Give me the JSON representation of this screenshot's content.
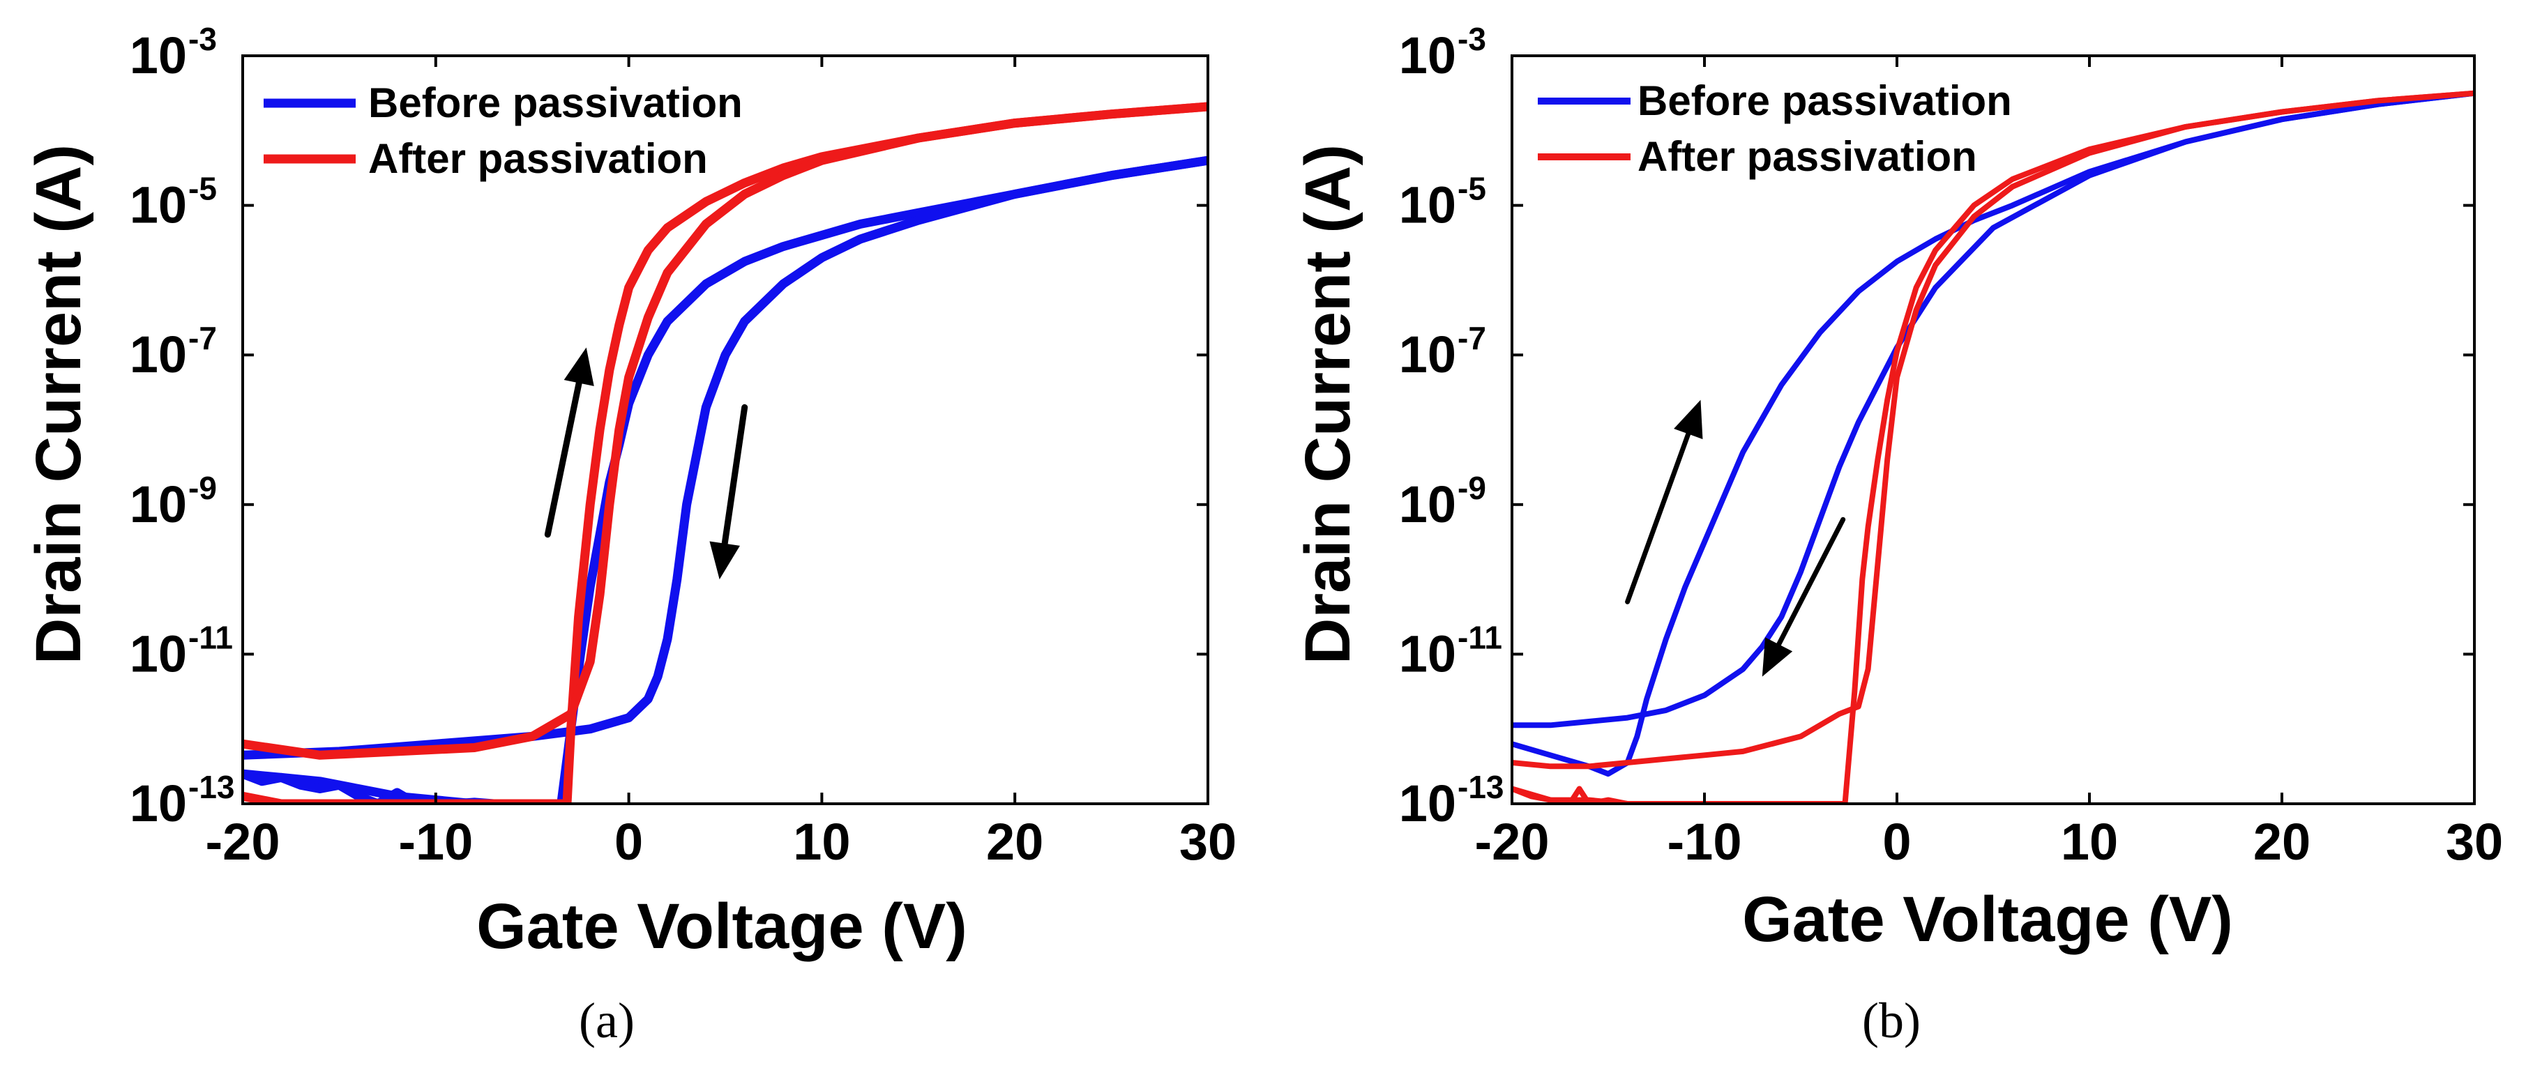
{
  "chart_data": [
    {
      "id": "a",
      "type": "line",
      "caption": "(a)",
      "xlabel": "Gate Voltage (V)",
      "ylabel": "Drain Current (A)",
      "xlim": [
        -20,
        30
      ],
      "ylim_log10": [
        -13,
        -3
      ],
      "xticks": [
        -20,
        -10,
        0,
        10,
        20,
        30
      ],
      "xtick_labels": [
        "-20",
        "-10",
        "0",
        "10",
        "20",
        "30"
      ],
      "yticks_log10": [
        -13,
        -11,
        -9,
        -7,
        -5,
        -3
      ],
      "ytick_base": "10",
      "ytick_exponents": [
        "-13",
        "-11",
        "-9",
        "-7",
        "-5",
        "-3"
      ],
      "legend": [
        "Before passivation",
        "After passivation"
      ],
      "legend_position": "top-left",
      "colors": {
        "before": "#1010ee",
        "after": "#ee1a1a",
        "arrow": "#000000"
      },
      "arrows": [
        {
          "direction": "up",
          "from": [
            -4.2,
            -9.4
          ],
          "to": [
            -2.2,
            -6.9
          ]
        },
        {
          "direction": "down",
          "from": [
            6.0,
            -7.7
          ],
          "to": [
            4.7,
            -10.0
          ]
        }
      ],
      "series": [
        {
          "name": "Before passivation forward",
          "legend": "Before passivation",
          "x": [
            -20,
            -18,
            -16,
            -14,
            -12,
            -10,
            -8,
            -6,
            -4,
            -3.5,
            -3,
            -2.5,
            -2,
            -1.5,
            -1,
            -0.5,
            0,
            1,
            2,
            4,
            6,
            8,
            10,
            12,
            15,
            20,
            25,
            30
          ],
          "y": [
            -12.6,
            -12.65,
            -12.7,
            -12.8,
            -12.9,
            -12.95,
            -13.0,
            -13.0,
            -13.0,
            -13.0,
            -12.0,
            -11.0,
            -10.1,
            -9.4,
            -8.7,
            -8.2,
            -7.65,
            -7.0,
            -6.55,
            -6.05,
            -5.75,
            -5.55,
            -5.4,
            -5.25,
            -5.1,
            -4.85,
            -4.6,
            -4.4
          ]
        },
        {
          "name": "Before passivation reverse",
          "legend": "Before passivation",
          "x": [
            30,
            25,
            20,
            15,
            12,
            10,
            8,
            6,
            5,
            4,
            3,
            2.5,
            2,
            1.5,
            1,
            0,
            -2,
            -5,
            -10,
            -15,
            -20
          ],
          "y": [
            -4.4,
            -4.6,
            -4.85,
            -5.2,
            -5.45,
            -5.7,
            -6.05,
            -6.55,
            -7.0,
            -7.7,
            -9.0,
            -10.0,
            -10.8,
            -11.3,
            -11.6,
            -11.85,
            -12.0,
            -12.1,
            -12.2,
            -12.3,
            -12.35
          ]
        },
        {
          "name": "Before passivation noise floor",
          "legend": "Before passivation",
          "x": [
            -20,
            -19,
            -18,
            -17,
            -16,
            -15,
            -14,
            -13,
            -12,
            -11,
            -10,
            -9,
            -8,
            -7,
            -6,
            -5
          ],
          "y": [
            -12.6,
            -12.7,
            -12.65,
            -12.75,
            -12.8,
            -12.75,
            -12.9,
            -13.0,
            -12.85,
            -13.0,
            -12.95,
            -13.0,
            -12.98,
            -13.0,
            -13.0,
            -13.0
          ]
        },
        {
          "name": "After passivation forward",
          "legend": "After passivation",
          "x": [
            -20,
            -18,
            -16,
            -14,
            -12,
            -10,
            -8,
            -6,
            -4,
            -3.2,
            -3,
            -2.6,
            -2,
            -1.5,
            -1,
            -0.5,
            0,
            1,
            2,
            4,
            6,
            8,
            10,
            15,
            20,
            25,
            30
          ],
          "y": [
            -12.9,
            -13.0,
            -13.0,
            -13.0,
            -13.0,
            -13.0,
            -13.0,
            -13.0,
            -13.0,
            -13.0,
            -12.0,
            -10.5,
            -9.0,
            -8.0,
            -7.2,
            -6.6,
            -6.1,
            -5.6,
            -5.3,
            -4.95,
            -4.7,
            -4.5,
            -4.35,
            -4.1,
            -3.9,
            -3.78,
            -3.68
          ]
        },
        {
          "name": "After passivation reverse",
          "legend": "After passivation",
          "x": [
            30,
            25,
            20,
            15,
            10,
            8,
            6,
            4,
            2,
            1,
            0,
            -0.5,
            -1,
            -1.5,
            -2,
            -3,
            -5,
            -8,
            -12,
            -16,
            -20
          ],
          "y": [
            -3.68,
            -3.78,
            -3.9,
            -4.1,
            -4.4,
            -4.6,
            -4.85,
            -5.25,
            -5.9,
            -6.5,
            -7.3,
            -8.0,
            -9.0,
            -10.2,
            -11.1,
            -11.8,
            -12.1,
            -12.25,
            -12.3,
            -12.35,
            -12.2
          ]
        }
      ]
    },
    {
      "id": "b",
      "type": "line",
      "caption": "(b)",
      "xlabel": "Gate Voltage (V)",
      "ylabel": "Drain Current (A)",
      "xlim": [
        -20,
        30
      ],
      "ylim_log10": [
        -13,
        -3
      ],
      "xticks": [
        -20,
        -10,
        0,
        10,
        20,
        30
      ],
      "xtick_labels": [
        "-20",
        "-10",
        "0",
        "10",
        "20",
        "30"
      ],
      "yticks_log10": [
        -13,
        -11,
        -9,
        -7,
        -5,
        -3
      ],
      "ytick_base": "10",
      "ytick_exponents": [
        "-13",
        "-11",
        "-9",
        "-7",
        "-5",
        "-3"
      ],
      "legend": [
        "Before passivation",
        "After passivation"
      ],
      "legend_position": "top-left",
      "colors": {
        "before": "#1010ee",
        "after": "#ee1a1a",
        "arrow": "#000000"
      },
      "arrows": [
        {
          "direction": "up",
          "from": [
            -14.0,
            -10.3
          ],
          "to": [
            -10.2,
            -7.6
          ]
        },
        {
          "direction": "down",
          "from": [
            -2.8,
            -9.2
          ],
          "to": [
            -7.0,
            -11.3
          ]
        }
      ],
      "series": [
        {
          "name": "Before passivation forward",
          "legend": "Before passivation",
          "x": [
            -20,
            -18,
            -16,
            -15,
            -14,
            -13.5,
            -13,
            -12,
            -11,
            -10,
            -8,
            -6,
            -4,
            -2,
            0,
            2,
            4,
            6,
            10,
            15,
            20,
            25,
            30
          ],
          "y": [
            -12.2,
            -12.35,
            -12.5,
            -12.6,
            -12.45,
            -12.1,
            -11.6,
            -10.8,
            -10.1,
            -9.5,
            -8.3,
            -7.4,
            -6.7,
            -6.15,
            -5.75,
            -5.45,
            -5.2,
            -5.0,
            -4.55,
            -4.15,
            -3.85,
            -3.65,
            -3.5
          ]
        },
        {
          "name": "Before passivation reverse",
          "legend": "Before passivation",
          "x": [
            30,
            25,
            20,
            15,
            10,
            5,
            2,
            0,
            -2,
            -3,
            -4,
            -5,
            -6,
            -7,
            -8,
            -10,
            -12,
            -14,
            -16,
            -18,
            -20
          ],
          "y": [
            -3.5,
            -3.65,
            -3.85,
            -4.15,
            -4.6,
            -5.3,
            -6.1,
            -6.9,
            -7.9,
            -8.5,
            -9.2,
            -9.9,
            -10.5,
            -10.9,
            -11.2,
            -11.55,
            -11.75,
            -11.85,
            -11.9,
            -11.95,
            -11.95
          ]
        },
        {
          "name": "After passivation forward",
          "legend": "After passivation",
          "x": [
            -20,
            -18,
            -16,
            -14,
            -12,
            -10,
            -8,
            -6,
            -4,
            -3,
            -2.7,
            -2.2,
            -1.8,
            -1.5,
            -1,
            -0.5,
            0,
            1,
            2,
            4,
            6,
            10,
            15,
            20,
            25,
            30
          ],
          "y": [
            -12.8,
            -12.95,
            -12.95,
            -13.0,
            -13.0,
            -13.0,
            -13.0,
            -13.0,
            -13.0,
            -13.0,
            -13.0,
            -11.5,
            -10.0,
            -9.3,
            -8.4,
            -7.6,
            -6.95,
            -6.1,
            -5.6,
            -5.0,
            -4.65,
            -4.25,
            -3.95,
            -3.75,
            -3.6,
            -3.5
          ]
        },
        {
          "name": "After passivation reverse",
          "legend": "After passivation",
          "x": [
            30,
            25,
            20,
            15,
            10,
            6,
            4,
            2,
            1,
            0,
            -0.5,
            -1,
            -1.5,
            -2,
            -3,
            -5,
            -8,
            -10,
            -12,
            -14,
            -16,
            -18,
            -20
          ],
          "y": [
            -3.5,
            -3.6,
            -3.75,
            -3.95,
            -4.3,
            -4.75,
            -5.15,
            -5.8,
            -6.4,
            -7.3,
            -8.4,
            -9.8,
            -11.2,
            -11.7,
            -11.8,
            -12.1,
            -12.3,
            -12.35,
            -12.4,
            -12.45,
            -12.5,
            -12.5,
            -12.45
          ]
        },
        {
          "name": "After passivation noise floor",
          "legend": "After passivation",
          "x": [
            -20,
            -19,
            -18,
            -17,
            -16.5,
            -16,
            -15,
            -14
          ],
          "y": [
            -12.8,
            -12.9,
            -12.95,
            -13.0,
            -12.8,
            -13.0,
            -12.95,
            -13.0
          ]
        }
      ]
    }
  ]
}
